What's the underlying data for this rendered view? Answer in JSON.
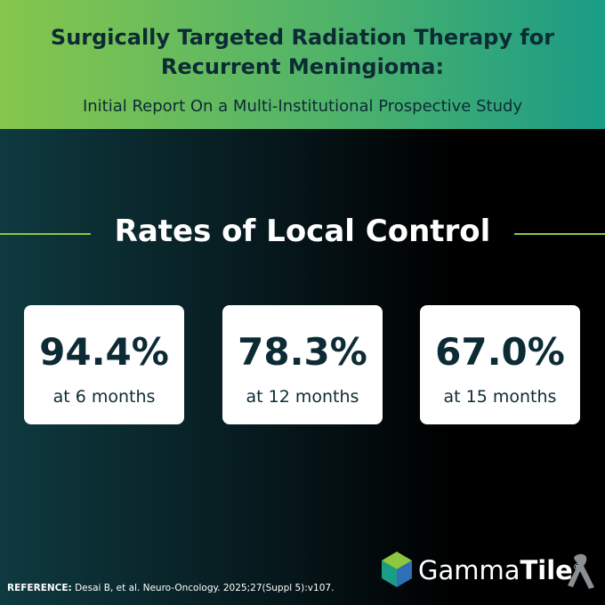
{
  "header": {
    "title_line1": "Surgically Targeted Radiation Therapy for",
    "title_line2": "Recurrent Meningioma:",
    "subtitle": "Initial Report On a Multi-Institutional Prospective Study"
  },
  "section": {
    "heading": "Rates of Local Control"
  },
  "stats": [
    {
      "value": "94.4%",
      "label": "at 6 months"
    },
    {
      "value": "78.3%",
      "label": "at 12 months"
    },
    {
      "value": "67.0%",
      "label": "at 15 months"
    }
  ],
  "reference": {
    "label": "REFERENCE:",
    "text": "Desai B, et al. Neuro-Oncology. 2025;27(Suppl 5):v107."
  },
  "logo": {
    "part1": "Gamma",
    "part2": "Tile",
    "mark": "®"
  }
}
